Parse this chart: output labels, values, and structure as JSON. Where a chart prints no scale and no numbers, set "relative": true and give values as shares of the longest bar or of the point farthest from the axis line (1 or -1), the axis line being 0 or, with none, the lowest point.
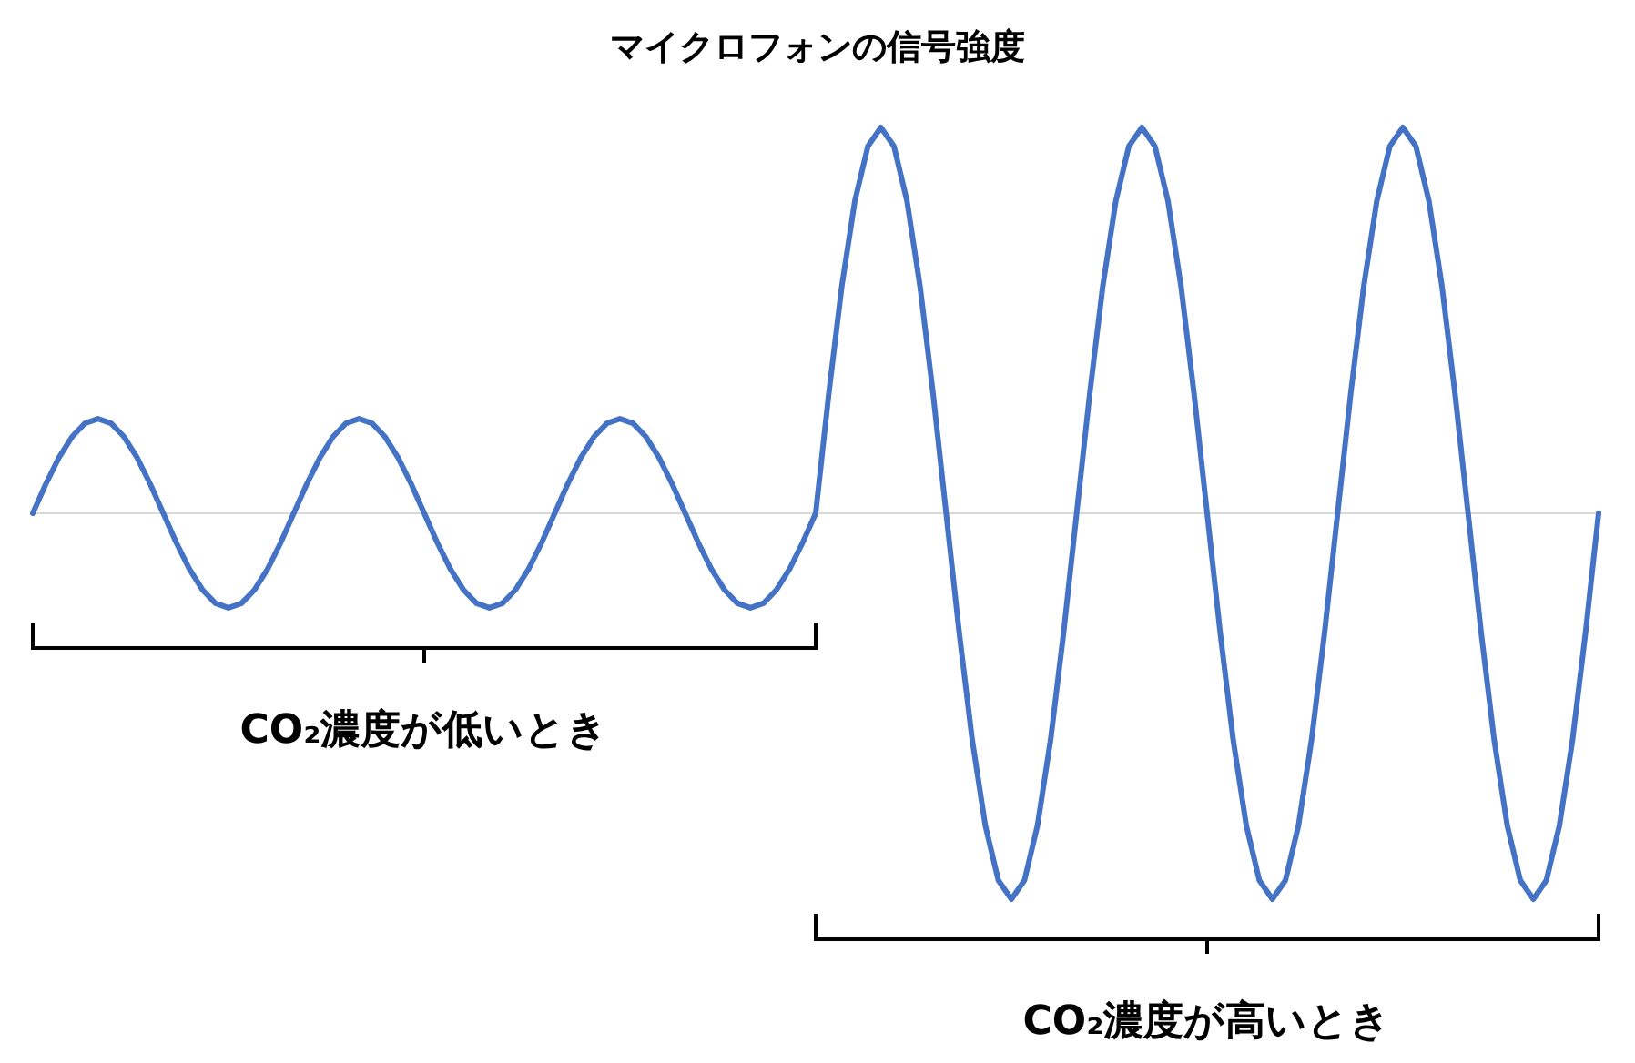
{
  "chart_data": {
    "type": "line",
    "title": "マイクロフォンの信号強度",
    "relative": true,
    "categories": [
      null,
      null,
      null,
      null,
      null,
      null,
      null,
      null,
      null,
      null,
      null,
      null,
      null,
      null,
      null,
      null,
      null,
      null,
      null,
      null,
      null,
      null,
      null,
      null,
      null,
      null,
      null,
      null,
      null,
      null,
      null,
      null,
      null,
      null,
      null,
      null,
      null,
      null,
      null,
      null,
      null,
      null,
      null,
      null,
      null,
      null,
      null,
      null,
      null,
      null,
      null,
      null,
      null,
      null,
      null,
      null,
      null,
      null,
      null,
      null,
      null,
      null,
      null,
      null,
      null,
      null,
      null,
      null,
      null,
      null,
      null,
      null,
      null,
      null,
      null,
      null,
      null,
      null,
      null,
      null,
      null,
      null,
      null,
      null,
      null,
      null,
      null,
      null,
      null,
      null,
      null,
      null,
      null,
      null,
      null,
      null,
      null,
      null,
      null,
      null,
      null,
      null,
      null,
      null,
      null,
      null,
      null,
      null,
      null,
      null,
      null,
      null,
      null,
      null,
      null,
      null,
      null,
      null,
      null,
      null,
      null
    ],
    "series": [
      {
        "color": "#4472c4",
        "values": [
          0,
          0.076,
          0.144,
          0.198,
          0.233,
          0.245,
          0.233,
          0.198,
          0.144,
          0.076,
          0,
          -0.076,
          -0.144,
          -0.198,
          -0.233,
          -0.245,
          -0.233,
          -0.198,
          -0.144,
          -0.076,
          0,
          0.076,
          0.144,
          0.198,
          0.233,
          0.245,
          0.233,
          0.198,
          0.144,
          0.076,
          0,
          -0.076,
          -0.144,
          -0.198,
          -0.233,
          -0.245,
          -0.233,
          -0.198,
          -0.144,
          -0.076,
          0,
          0.076,
          0.144,
          0.198,
          0.233,
          0.245,
          0.233,
          0.198,
          0.144,
          0.076,
          0,
          -0.076,
          -0.144,
          -0.198,
          -0.233,
          -0.245,
          -0.233,
          -0.198,
          -0.144,
          -0.076,
          0,
          0.309,
          0.588,
          0.809,
          0.951,
          1,
          0.951,
          0.809,
          0.588,
          0.309,
          0,
          -0.309,
          -0.588,
          -0.809,
          -0.951,
          -1,
          -0.951,
          -0.809,
          -0.588,
          -0.309,
          0,
          0.309,
          0.588,
          0.809,
          0.951,
          1,
          0.951,
          0.809,
          0.588,
          0.309,
          0,
          -0.309,
          -0.588,
          -0.809,
          -0.951,
          -1,
          -0.951,
          -0.809,
          -0.588,
          -0.309,
          0,
          0.309,
          0.588,
          0.809,
          0.951,
          1,
          0.951,
          0.809,
          0.588,
          0.309,
          0,
          -0.309,
          -0.588,
          -0.809,
          -0.951,
          -1,
          -0.951,
          -0.809,
          -0.588,
          -0.309,
          0
        ]
      }
    ],
    "annotations": [
      "CO₂濃度が低いとき",
      "CO₂濃度が高いとき"
    ]
  }
}
